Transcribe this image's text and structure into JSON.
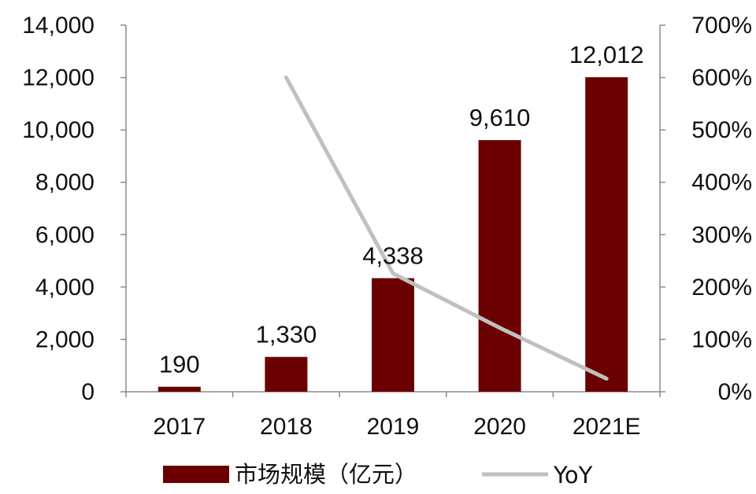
{
  "chart_data": {
    "type": "bar",
    "categories": [
      "2017",
      "2018",
      "2019",
      "2020",
      "2021E"
    ],
    "series": [
      {
        "name": "市场规模（亿元）",
        "type": "bar",
        "axis": "left",
        "values": [
          190,
          1330,
          4338,
          9610,
          12012
        ],
        "labels": [
          "190",
          "1,330",
          "4,338",
          "9,610",
          "12,012"
        ],
        "color": "#6b0000"
      },
      {
        "name": "YoY",
        "type": "line",
        "axis": "right",
        "values": [
          null,
          600,
          226,
          122,
          25
        ],
        "color": "#c0c0c0"
      }
    ],
    "y_left": {
      "lim": [
        0,
        14000
      ],
      "ticks": [
        0,
        2000,
        4000,
        6000,
        8000,
        10000,
        12000,
        14000
      ],
      "tick_labels": [
        "0",
        "2,000",
        "4,000",
        "6,000",
        "8,000",
        "10,000",
        "12,000",
        "14,000"
      ]
    },
    "y_right": {
      "lim": [
        0,
        700
      ],
      "ticks": [
        0,
        100,
        200,
        300,
        400,
        500,
        600,
        700
      ],
      "tick_labels": [
        "0%",
        "100%",
        "200%",
        "300%",
        "400%",
        "500%",
        "600%",
        "700%"
      ]
    },
    "legend_position": "bottom",
    "grid": false
  }
}
